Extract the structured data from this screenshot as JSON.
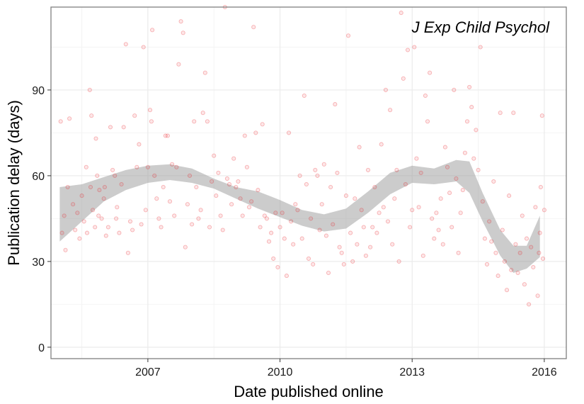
{
  "chart_data": {
    "type": "scatter",
    "annotation": "J Exp Child Psychol",
    "xlabel": "Date published online",
    "ylabel": "Publication delay (days)",
    "xlim": [
      2004.8,
      2016.5
    ],
    "ylim": [
      -4,
      119
    ],
    "x_ticks": [
      2007,
      2010,
      2013,
      2016
    ],
    "y_ticks": [
      0,
      30,
      60,
      90
    ],
    "grid": true,
    "colors": {
      "points": "#e8161d",
      "band": "#999999",
      "grid": "#ebebeb",
      "frame": "#7f7f7f"
    },
    "smooth_band": {
      "x": [
        2005.0,
        2005.5,
        2006.0,
        2006.5,
        2007.0,
        2007.5,
        2008.0,
        2008.5,
        2009.0,
        2009.5,
        2010.0,
        2010.5,
        2011.0,
        2011.5,
        2012.0,
        2012.5,
        2013.0,
        2013.5,
        2014.0,
        2014.3,
        2014.6,
        2015.0,
        2015.3,
        2015.6,
        2015.9
      ],
      "lower": [
        37,
        44,
        51,
        55,
        57.5,
        58.5,
        57.5,
        55.5,
        52,
        48.5,
        45.5,
        42.5,
        40.5,
        41.5,
        47,
        53.5,
        57.5,
        57,
        58,
        54,
        44,
        32,
        26,
        27.5,
        31.5
      ],
      "upper": [
        56,
        57,
        59.5,
        62,
        63.5,
        64,
        62.5,
        59,
        56,
        54.5,
        51.5,
        48,
        46.5,
        48.5,
        54.5,
        61,
        63.5,
        62.5,
        65.5,
        65,
        54,
        41,
        35.5,
        35.5,
        46
      ]
    },
    "series": [
      {
        "points": [
          [
            2005.02,
            79
          ],
          [
            2005.05,
            40
          ],
          [
            2005.1,
            46
          ],
          [
            2005.13,
            34
          ],
          [
            2005.18,
            56
          ],
          [
            2005.22,
            80
          ],
          [
            2005.3,
            50
          ],
          [
            2005.35,
            41
          ],
          [
            2005.4,
            47
          ],
          [
            2005.45,
            38
          ],
          [
            2005.5,
            53
          ],
          [
            2005.55,
            44
          ],
          [
            2005.6,
            63
          ],
          [
            2005.62,
            40
          ],
          [
            2005.68,
            90
          ],
          [
            2005.7,
            56
          ],
          [
            2005.72,
            81
          ],
          [
            2005.75,
            48
          ],
          [
            2005.8,
            42
          ],
          [
            2005.82,
            73
          ],
          [
            2005.85,
            60
          ],
          [
            2005.88,
            46
          ],
          [
            2005.9,
            55
          ],
          [
            2005.95,
            45
          ],
          [
            2006.0,
            52
          ],
          [
            2006.02,
            56
          ],
          [
            2006.05,
            39
          ],
          [
            2006.1,
            42
          ],
          [
            2006.15,
            77
          ],
          [
            2006.2,
            62
          ],
          [
            2006.25,
            60
          ],
          [
            2006.28,
            45
          ],
          [
            2006.3,
            49
          ],
          [
            2006.35,
            40
          ],
          [
            2006.4,
            57
          ],
          [
            2006.45,
            77
          ],
          [
            2006.5,
            106
          ],
          [
            2006.55,
            33
          ],
          [
            2006.6,
            44
          ],
          [
            2006.65,
            41
          ],
          [
            2006.7,
            81
          ],
          [
            2006.75,
            63
          ],
          [
            2006.8,
            71
          ],
          [
            2006.85,
            43
          ],
          [
            2006.9,
            105
          ],
          [
            2006.95,
            48
          ],
          [
            2007.0,
            63
          ],
          [
            2007.05,
            83
          ],
          [
            2007.08,
            79
          ],
          [
            2007.1,
            111
          ],
          [
            2007.15,
            60
          ],
          [
            2007.2,
            52
          ],
          [
            2007.25,
            45
          ],
          [
            2007.3,
            42
          ],
          [
            2007.35,
            56
          ],
          [
            2007.4,
            74
          ],
          [
            2007.45,
            74
          ],
          [
            2007.5,
            51
          ],
          [
            2007.55,
            64
          ],
          [
            2007.6,
            46
          ],
          [
            2007.65,
            63
          ],
          [
            2007.7,
            99
          ],
          [
            2007.75,
            114
          ],
          [
            2007.8,
            110
          ],
          [
            2007.85,
            35
          ],
          [
            2007.9,
            50
          ],
          [
            2007.95,
            60
          ],
          [
            2008.0,
            43
          ],
          [
            2008.05,
            79
          ],
          [
            2008.1,
            56
          ],
          [
            2008.15,
            45
          ],
          [
            2008.2,
            48
          ],
          [
            2008.25,
            82
          ],
          [
            2008.3,
            96
          ],
          [
            2008.35,
            79
          ],
          [
            2008.4,
            42
          ],
          [
            2008.45,
            58
          ],
          [
            2008.5,
            67
          ],
          [
            2008.55,
            53
          ],
          [
            2008.6,
            61
          ],
          [
            2008.65,
            46
          ],
          [
            2008.7,
            41
          ],
          [
            2008.75,
            119
          ],
          [
            2008.8,
            59
          ],
          [
            2008.85,
            57
          ],
          [
            2008.9,
            50
          ],
          [
            2008.95,
            66
          ],
          [
            2009.0,
            56
          ],
          [
            2009.05,
            58
          ],
          [
            2009.1,
            52
          ],
          [
            2009.15,
            46
          ],
          [
            2009.2,
            74
          ],
          [
            2009.25,
            63
          ],
          [
            2009.3,
            49
          ],
          [
            2009.35,
            51
          ],
          [
            2009.4,
            112
          ],
          [
            2009.45,
            75
          ],
          [
            2009.5,
            55
          ],
          [
            2009.55,
            42
          ],
          [
            2009.6,
            78
          ],
          [
            2009.65,
            46
          ],
          [
            2009.7,
            45
          ],
          [
            2009.75,
            37
          ],
          [
            2009.8,
            40
          ],
          [
            2009.85,
            31
          ],
          [
            2009.9,
            47
          ],
          [
            2009.95,
            28
          ],
          [
            2010.0,
            42
          ],
          [
            2010.05,
            47
          ],
          [
            2010.1,
            38
          ],
          [
            2010.15,
            25
          ],
          [
            2010.2,
            75
          ],
          [
            2010.25,
            44
          ],
          [
            2010.3,
            36
          ],
          [
            2010.35,
            50
          ],
          [
            2010.4,
            48
          ],
          [
            2010.45,
            60
          ],
          [
            2010.5,
            38
          ],
          [
            2010.55,
            88
          ],
          [
            2010.6,
            57
          ],
          [
            2010.65,
            31
          ],
          [
            2010.7,
            45
          ],
          [
            2010.75,
            29
          ],
          [
            2010.8,
            62
          ],
          [
            2010.85,
            60
          ],
          [
            2010.9,
            41
          ],
          [
            2010.95,
            50
          ],
          [
            2011.0,
            64
          ],
          [
            2011.05,
            39
          ],
          [
            2011.1,
            26
          ],
          [
            2011.15,
            56
          ],
          [
            2011.2,
            43
          ],
          [
            2011.25,
            85
          ],
          [
            2011.3,
            61
          ],
          [
            2011.35,
            35
          ],
          [
            2011.4,
            33
          ],
          [
            2011.45,
            29
          ],
          [
            2011.5,
            53
          ],
          [
            2011.55,
            109
          ],
          [
            2011.6,
            40
          ],
          [
            2011.65,
            30
          ],
          [
            2011.7,
            52
          ],
          [
            2011.75,
            36
          ],
          [
            2011.8,
            70
          ],
          [
            2011.85,
            48
          ],
          [
            2011.9,
            42
          ],
          [
            2011.95,
            32
          ],
          [
            2012.0,
            62
          ],
          [
            2012.05,
            35
          ],
          [
            2012.1,
            42
          ],
          [
            2012.15,
            56
          ],
          [
            2012.2,
            40
          ],
          [
            2012.25,
            47
          ],
          [
            2012.3,
            71
          ],
          [
            2012.35,
            49
          ],
          [
            2012.4,
            90
          ],
          [
            2012.45,
            44
          ],
          [
            2012.5,
            83
          ],
          [
            2012.55,
            36
          ],
          [
            2012.6,
            52
          ],
          [
            2012.65,
            62
          ],
          [
            2012.7,
            30
          ],
          [
            2012.75,
            117
          ],
          [
            2012.8,
            94
          ],
          [
            2012.85,
            57
          ],
          [
            2012.9,
            104
          ],
          [
            2012.95,
            42
          ],
          [
            2013.0,
            48
          ],
          [
            2013.05,
            105
          ],
          [
            2013.1,
            66
          ],
          [
            2013.15,
            49
          ],
          [
            2013.2,
            61
          ],
          [
            2013.25,
            32
          ],
          [
            2013.3,
            88
          ],
          [
            2013.35,
            79
          ],
          [
            2013.4,
            96
          ],
          [
            2013.45,
            45
          ],
          [
            2013.5,
            38
          ],
          [
            2013.55,
            47
          ],
          [
            2013.6,
            41
          ],
          [
            2013.65,
            52
          ],
          [
            2013.7,
            36
          ],
          [
            2013.75,
            70
          ],
          [
            2013.8,
            63
          ],
          [
            2013.85,
            54
          ],
          [
            2013.9,
            42
          ],
          [
            2013.95,
            90
          ],
          [
            2014.0,
            59
          ],
          [
            2014.05,
            33
          ],
          [
            2014.1,
            47
          ],
          [
            2014.15,
            55
          ],
          [
            2014.2,
            68
          ],
          [
            2014.25,
            79
          ],
          [
            2014.3,
            91
          ],
          [
            2014.35,
            84
          ],
          [
            2014.4,
            66
          ],
          [
            2014.45,
            76
          ],
          [
            2014.5,
            62
          ],
          [
            2014.55,
            105
          ],
          [
            2014.6,
            51
          ],
          [
            2014.65,
            38
          ],
          [
            2014.7,
            29
          ],
          [
            2014.75,
            44
          ],
          [
            2014.8,
            37
          ],
          [
            2014.85,
            58
          ],
          [
            2014.9,
            33
          ],
          [
            2014.95,
            25
          ],
          [
            2015.0,
            82
          ],
          [
            2015.05,
            41
          ],
          [
            2015.1,
            30
          ],
          [
            2015.15,
            20
          ],
          [
            2015.2,
            53
          ],
          [
            2015.25,
            27
          ],
          [
            2015.3,
            82
          ],
          [
            2015.35,
            36
          ],
          [
            2015.4,
            26
          ],
          [
            2015.45,
            33
          ],
          [
            2015.5,
            46
          ],
          [
            2015.55,
            22
          ],
          [
            2015.6,
            38
          ],
          [
            2015.65,
            15
          ],
          [
            2015.7,
            35
          ],
          [
            2015.75,
            28
          ],
          [
            2015.8,
            49
          ],
          [
            2015.85,
            18
          ],
          [
            2015.88,
            33
          ],
          [
            2015.9,
            40
          ],
          [
            2015.92,
            56
          ],
          [
            2015.95,
            81
          ],
          [
            2015.97,
            31
          ],
          [
            2016.0,
            48
          ]
        ]
      }
    ]
  }
}
